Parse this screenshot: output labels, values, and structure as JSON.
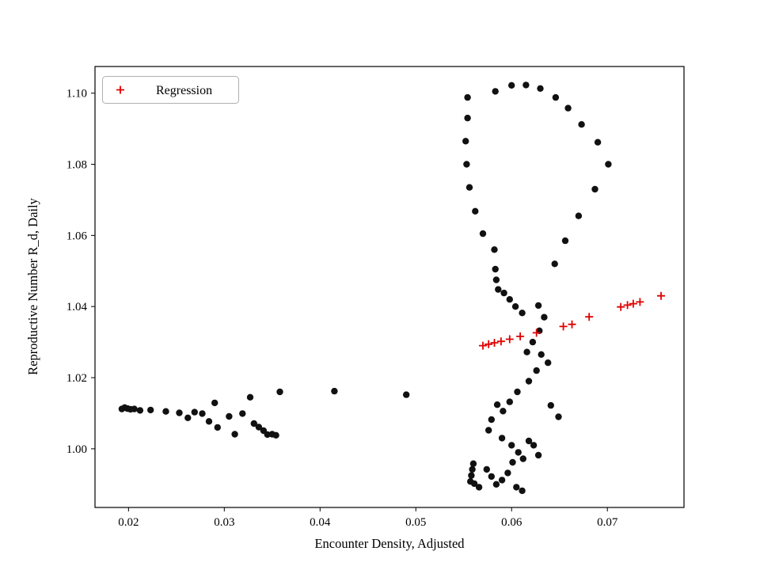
{
  "figure": {
    "background": "#ffffff",
    "dot_color": "#111111",
    "accent_red": "#e00000",
    "border_color": "#000000",
    "legend_border": "#b0b0b0"
  },
  "chart_data": {
    "type": "scatter",
    "title": "",
    "xlabel": "Encounter Density, Adjusted",
    "ylabel": "Reproductive Number R_d, Daily",
    "xlim": [
      0.0165,
      0.078
    ],
    "ylim": [
      0.9835,
      1.1075
    ],
    "xticks": [
      0.02,
      0.03,
      0.04,
      0.05,
      0.06,
      0.07
    ],
    "yticks": [
      1.0,
      1.02,
      1.04,
      1.06,
      1.08,
      1.1
    ],
    "grid": false,
    "legend": {
      "position": "upper-left",
      "entries": [
        {
          "label": "Regression",
          "marker": "plus",
          "color": "#e00000"
        }
      ]
    },
    "series": [
      {
        "name": "observations",
        "marker": "circle",
        "color": "#111111",
        "points": [
          [
            0.0193,
            1.0112
          ],
          [
            0.0196,
            1.0116
          ],
          [
            0.0199,
            1.0113
          ],
          [
            0.0202,
            1.0111
          ],
          [
            0.0206,
            1.0112
          ],
          [
            0.0212,
            1.0108
          ],
          [
            0.0223,
            1.0109
          ],
          [
            0.0239,
            1.0105
          ],
          [
            0.0253,
            1.0101
          ],
          [
            0.0262,
            1.0087
          ],
          [
            0.0269,
            1.0103
          ],
          [
            0.0277,
            1.0099
          ],
          [
            0.0284,
            1.0077
          ],
          [
            0.029,
            1.0129
          ],
          [
            0.0293,
            1.006
          ],
          [
            0.0305,
            1.0091
          ],
          [
            0.0311,
            1.0041
          ],
          [
            0.0319,
            1.0099
          ],
          [
            0.0327,
            1.0145
          ],
          [
            0.0331,
            1.0071
          ],
          [
            0.0336,
            1.0061
          ],
          [
            0.0341,
            1.0051
          ],
          [
            0.0345,
            1.004
          ],
          [
            0.035,
            1.0041
          ],
          [
            0.0354,
            1.0038
          ],
          [
            0.0358,
            1.016
          ],
          [
            0.0415,
            1.0162
          ],
          [
            0.049,
            1.0152
          ],
          [
            0.0554,
            1.0988
          ],
          [
            0.0554,
            1.093
          ],
          [
            0.0552,
            1.0865
          ],
          [
            0.0553,
            1.08
          ],
          [
            0.0556,
            1.0735
          ],
          [
            0.0562,
            1.0668
          ],
          [
            0.057,
            1.0605
          ],
          [
            0.0583,
            1.1005
          ],
          [
            0.06,
            1.1022
          ],
          [
            0.0615,
            1.1023
          ],
          [
            0.063,
            1.1013
          ],
          [
            0.0646,
            1.0988
          ],
          [
            0.0659,
            1.0958
          ],
          [
            0.0673,
            1.0912
          ],
          [
            0.069,
            1.0862
          ],
          [
            0.0701,
            1.08
          ],
          [
            0.0687,
            1.073
          ],
          [
            0.067,
            1.0655
          ],
          [
            0.0656,
            1.0585
          ],
          [
            0.0645,
            1.052
          ],
          [
            0.0582,
            1.056
          ],
          [
            0.0583,
            1.0505
          ],
          [
            0.0584,
            1.0475
          ],
          [
            0.0586,
            1.0448
          ],
          [
            0.0592,
            1.0438
          ],
          [
            0.0598,
            1.042
          ],
          [
            0.0604,
            1.04
          ],
          [
            0.0611,
            1.0382
          ],
          [
            0.0628,
            1.0403
          ],
          [
            0.0634,
            1.037
          ],
          [
            0.0629,
            1.0332
          ],
          [
            0.0622,
            1.03
          ],
          [
            0.0616,
            1.0272
          ],
          [
            0.0631,
            1.0265
          ],
          [
            0.0638,
            1.0242
          ],
          [
            0.0626,
            1.022
          ],
          [
            0.0618,
            1.019
          ],
          [
            0.0606,
            1.016
          ],
          [
            0.0598,
            1.0132
          ],
          [
            0.0591,
            1.0106
          ],
          [
            0.0585,
            1.0124
          ],
          [
            0.0579,
            1.0082
          ],
          [
            0.0576,
            1.0052
          ],
          [
            0.059,
            1.003
          ],
          [
            0.06,
            1.001
          ],
          [
            0.0607,
            0.999
          ],
          [
            0.0612,
            0.9972
          ],
          [
            0.0618,
            1.0022
          ],
          [
            0.0623,
            1.001
          ],
          [
            0.0628,
            0.9982
          ],
          [
            0.0601,
            0.9962
          ],
          [
            0.0596,
            0.9932
          ],
          [
            0.059,
            0.9912
          ],
          [
            0.0584,
            0.99
          ],
          [
            0.0579,
            0.9922
          ],
          [
            0.0574,
            0.9942
          ],
          [
            0.0566,
            0.9892
          ],
          [
            0.0561,
            0.9902
          ],
          [
            0.0605,
            0.9892
          ],
          [
            0.0611,
            0.9882
          ],
          [
            0.0557,
            0.9908
          ],
          [
            0.0558,
            0.9925
          ],
          [
            0.0559,
            0.9942
          ],
          [
            0.056,
            0.9958
          ],
          [
            0.0641,
            1.0122
          ],
          [
            0.0649,
            1.009
          ]
        ]
      },
      {
        "name": "Regression",
        "marker": "plus",
        "color": "#e00000",
        "points": [
          [
            0.057,
            1.029
          ],
          [
            0.0576,
            1.0294
          ],
          [
            0.0582,
            1.0298
          ],
          [
            0.0589,
            1.0302
          ],
          [
            0.0598,
            1.0308
          ],
          [
            0.0609,
            1.0316
          ],
          [
            0.0626,
            1.0326
          ],
          [
            0.0654,
            1.0344
          ],
          [
            0.0663,
            1.035
          ],
          [
            0.0681,
            1.0371
          ],
          [
            0.0714,
            1.0399
          ],
          [
            0.0721,
            1.0404
          ],
          [
            0.0727,
            1.0408
          ],
          [
            0.0734,
            1.0413
          ],
          [
            0.0756,
            1.043
          ]
        ]
      }
    ]
  }
}
